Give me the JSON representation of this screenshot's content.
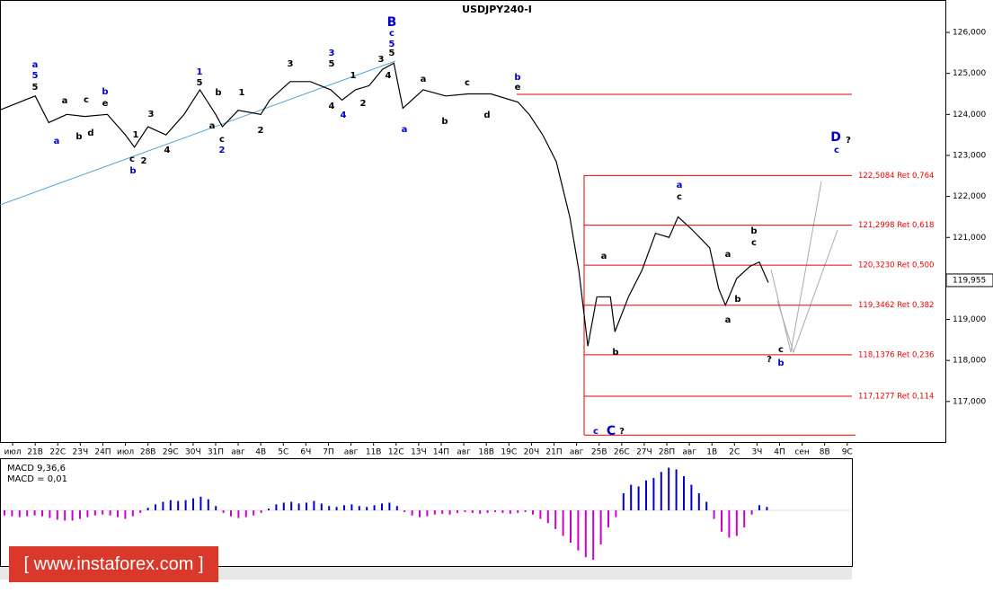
{
  "chart_data": [
    {
      "type": "line",
      "title": "USDJPY240-I",
      "x": [
        -0.6,
        1.0,
        1.6,
        2.4,
        3.2,
        4.2,
        5.0,
        5.4,
        6.0,
        6.8,
        7.6,
        8.3,
        9.0,
        9.3,
        10.0,
        11.0,
        11.4,
        12.3,
        13.2,
        14.1,
        14.6,
        15.2,
        15.8,
        16.4,
        16.9,
        17.3,
        18.2,
        19.2,
        20.2,
        21.2,
        22.4,
        22.9,
        23.5,
        24.1,
        24.7,
        25.1,
        25.5,
        25.9,
        26.5,
        26.7,
        27.3,
        27.9,
        28.5,
        29.1,
        29.5,
        30.1,
        30.9,
        31.3,
        31.6,
        32.1,
        32.7,
        33.1,
        33.5
      ],
      "series": [
        {
          "color": "#000000",
          "values": [
            124.1,
            124.45,
            123.8,
            124.0,
            123.95,
            124.0,
            123.5,
            123.2,
            123.7,
            123.5,
            124.0,
            124.6,
            124.0,
            123.7,
            124.1,
            124.0,
            124.35,
            124.8,
            124.8,
            124.6,
            124.35,
            124.6,
            124.7,
            125.1,
            125.25,
            124.15,
            124.6,
            124.45,
            124.5,
            124.5,
            124.3,
            124.0,
            123.5,
            122.85,
            121.5,
            120.2,
            118.35,
            119.55,
            119.55,
            118.7,
            119.55,
            120.2,
            121.1,
            121.0,
            121.5,
            121.2,
            120.75,
            119.75,
            119.35,
            120.0,
            120.3,
            120.4,
            119.9
          ]
        }
      ],
      "xlim": [
        -0.56,
        41.27
      ],
      "xticks": [
        {
          "value": 0,
          "label": "июл"
        },
        {
          "value": 1,
          "label": "21В"
        },
        {
          "value": 2,
          "label": "22С"
        },
        {
          "value": 3,
          "label": "23Ч"
        },
        {
          "value": 4,
          "label": "24П"
        },
        {
          "value": 5,
          "label": "июл"
        },
        {
          "value": 6,
          "label": "28В"
        },
        {
          "value": 7,
          "label": "29С"
        },
        {
          "value": 8,
          "label": "30Ч"
        },
        {
          "value": 9,
          "label": "31П"
        },
        {
          "value": 10,
          "label": "авг"
        },
        {
          "value": 11,
          "label": "4В"
        },
        {
          "value": 12,
          "label": "5С"
        },
        {
          "value": 13,
          "label": "6Ч"
        },
        {
          "value": 14,
          "label": "7П"
        },
        {
          "value": 15,
          "label": "авг"
        },
        {
          "value": 16,
          "label": "11В"
        },
        {
          "value": 17,
          "label": "12С"
        },
        {
          "value": 18,
          "label": "13Ч"
        },
        {
          "value": 19,
          "label": "14П"
        },
        {
          "value": 20,
          "label": "авг"
        },
        {
          "value": 21,
          "label": "18В"
        },
        {
          "value": 22,
          "label": "19С"
        },
        {
          "value": 23,
          "label": "20Ч"
        },
        {
          "value": 24,
          "label": "21П"
        },
        {
          "value": 25,
          "label": "авг"
        },
        {
          "value": 26,
          "label": "25В"
        },
        {
          "value": 27,
          "label": "26С"
        },
        {
          "value": 28,
          "label": "27Ч"
        },
        {
          "value": 29,
          "label": "28П"
        },
        {
          "value": 30,
          "label": "авг"
        },
        {
          "value": 31,
          "label": "1В"
        },
        {
          "value": 32,
          "label": "2С"
        },
        {
          "value": 33,
          "label": "3Ч"
        },
        {
          "value": 34,
          "label": "4П"
        },
        {
          "value": 35,
          "label": "сен"
        },
        {
          "value": 36,
          "label": "8В"
        },
        {
          "value": 37,
          "label": "9С"
        }
      ],
      "ylim": [
        116.01,
        126.79
      ],
      "yticks": [
        {
          "value": 117,
          "label": "117,000"
        },
        {
          "value": 118,
          "label": "118,000"
        },
        {
          "value": 119,
          "label": "119,000"
        },
        {
          "value": 120,
          "label": "120,000"
        },
        {
          "value": 121,
          "label": "121,000"
        },
        {
          "value": 122,
          "label": "122,000"
        },
        {
          "value": 123,
          "label": "123,000"
        },
        {
          "value": 124,
          "label": "124,000"
        },
        {
          "value": 125,
          "label": "125,000"
        },
        {
          "value": 126,
          "label": "126,000"
        }
      ],
      "last_price": {
        "value": 119.955,
        "label": "119,955"
      },
      "levels": [
        {
          "value": 122.5084,
          "label": "122,5084 Ret 0,764"
        },
        {
          "value": 121.2998,
          "label": "121,2998 Ret 0,618"
        },
        {
          "value": 120.323,
          "label": "120,3230 Ret 0,500"
        },
        {
          "value": 119.3462,
          "label": "119,3462 Ret 0,382"
        },
        {
          "value": 118.1376,
          "label": "118,1376 Ret 0,236"
        },
        {
          "value": 117.1277,
          "label": "117,1277 Ret 0,114"
        }
      ],
      "lines": [
        124.49,
        116.18
      ],
      "annotations": [
        "a",
        "5",
        "5",
        "a",
        "a",
        "b",
        "c",
        "d",
        "b",
        "e",
        "1",
        "c",
        "2",
        "b",
        "3",
        "4",
        "1",
        "5",
        "b",
        "a",
        "c",
        "2",
        "1",
        "2",
        "3",
        "3",
        "5",
        "4",
        "4",
        "2",
        "1",
        "3",
        "4",
        "B",
        "c",
        "5",
        "5",
        "a",
        "a",
        "b",
        "c",
        "d",
        "b",
        "e",
        "a",
        "c",
        "b",
        "c",
        "a",
        "b",
        "a",
        "a",
        "b",
        "c",
        "b",
        "?",
        "D",
        "?",
        "c",
        "c",
        "C",
        "?"
      ]
    },
    {
      "type": "bar",
      "title": "MACD 9,36,6",
      "subtitle": "MACD = 0,01",
      "ylim": [
        -0.6,
        0.6
      ],
      "color": "#0000cc",
      "negative_color": "#cc00cc",
      "values": [
        -0.06,
        -0.07,
        -0.08,
        -0.07,
        -0.06,
        -0.07,
        -0.09,
        -0.11,
        -0.12,
        -0.12,
        -0.1,
        -0.08,
        -0.06,
        -0.05,
        -0.06,
        -0.08,
        -0.1,
        -0.07,
        -0.03,
        0.03,
        0.07,
        0.1,
        0.12,
        0.11,
        0.12,
        0.14,
        0.16,
        0.13,
        0.05,
        -0.03,
        -0.07,
        -0.09,
        -0.08,
        -0.06,
        -0.03,
        0.02,
        0.07,
        0.09,
        0.1,
        0.08,
        0.09,
        0.11,
        0.08,
        0.05,
        0.04,
        0.06,
        0.07,
        0.05,
        0.04,
        0.06,
        0.08,
        0.09,
        0.05,
        -0.02,
        -0.06,
        -0.08,
        -0.07,
        -0.05,
        -0.04,
        -0.05,
        -0.03,
        -0.02,
        -0.03,
        -0.04,
        -0.03,
        -0.02,
        -0.03,
        -0.04,
        -0.03,
        -0.02,
        -0.05,
        -0.1,
        -0.15,
        -0.22,
        -0.3,
        -0.38,
        -0.47,
        -0.55,
        -0.58,
        -0.4,
        -0.2,
        -0.08,
        0.2,
        0.3,
        0.28,
        0.35,
        0.38,
        0.45,
        0.5,
        0.48,
        0.4,
        0.3,
        0.2,
        0.1,
        -0.1,
        -0.25,
        -0.32,
        -0.3,
        -0.2,
        -0.05,
        0.06,
        0.04
      ]
    }
  ],
  "watermark": "[ www.instaforex.com ]"
}
